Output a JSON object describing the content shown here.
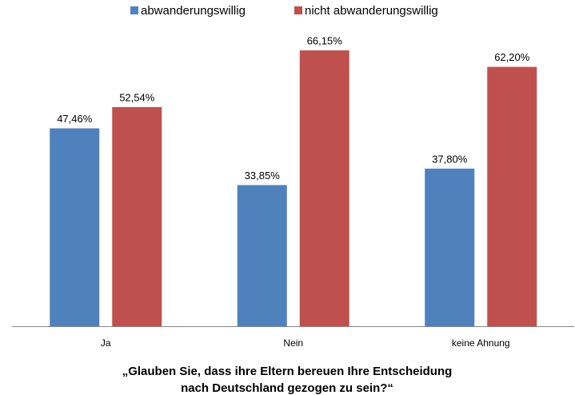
{
  "chart_data": {
    "type": "bar",
    "title": [
      "„Glauben Sie, dass ihre Eltern bereuen Ihre Entscheidung",
      "nach Deutschland gezogen zu sein?“"
    ],
    "categories": [
      "Ja",
      "Nein",
      "keine Ahnung"
    ],
    "series": [
      {
        "name": "abwanderungswillig",
        "color": "#4f81bd",
        "values": [
          47.46,
          33.85,
          37.8
        ],
        "value_labels": [
          "47,46%",
          "33,85%",
          "37,80%"
        ]
      },
      {
        "name": "nicht abwanderungswillig",
        "color": "#c0504d",
        "values": [
          52.54,
          66.15,
          62.2
        ],
        "value_labels": [
          "52,54%",
          "66,15%",
          "62,20%"
        ]
      }
    ],
    "legend": "top"
  }
}
